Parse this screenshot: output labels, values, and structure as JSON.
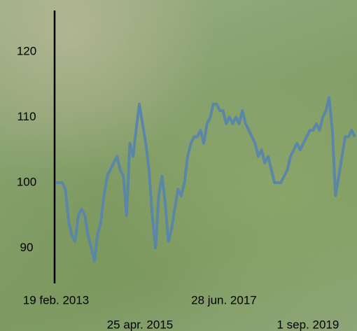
{
  "chart_data": {
    "type": "line",
    "x": [
      "2013-02-19",
      "2013-03-19",
      "2013-04-19",
      "2013-05-19",
      "2013-06-19",
      "2013-07-19",
      "2013-08-19",
      "2013-09-19",
      "2013-10-19",
      "2013-11-19",
      "2013-12-19",
      "2014-01-19",
      "2014-02-19",
      "2014-03-19",
      "2014-04-19",
      "2014-05-19",
      "2014-06-19",
      "2014-07-19",
      "2014-08-19",
      "2014-09-19",
      "2014-10-19",
      "2014-11-19",
      "2014-12-19",
      "2015-01-19",
      "2015-02-19",
      "2015-03-19",
      "2015-04-19",
      "2015-05-19",
      "2015-06-19",
      "2015-07-19",
      "2015-08-19",
      "2015-09-19",
      "2015-10-19",
      "2015-11-19",
      "2015-12-19",
      "2016-01-19",
      "2016-02-19",
      "2016-03-19",
      "2016-04-19",
      "2016-05-19",
      "2016-06-19",
      "2016-07-19",
      "2016-08-19",
      "2016-09-19",
      "2016-10-19",
      "2016-11-19",
      "2016-12-19",
      "2017-01-19",
      "2017-02-19",
      "2017-03-19",
      "2017-04-19",
      "2017-05-19",
      "2017-06-19",
      "2017-07-19",
      "2017-08-19",
      "2017-09-19",
      "2017-10-19",
      "2017-11-19",
      "2017-12-19",
      "2018-01-19",
      "2018-02-19",
      "2018-03-19",
      "2018-04-19",
      "2018-05-19",
      "2018-06-19",
      "2018-07-19",
      "2018-08-19",
      "2018-09-19",
      "2018-10-19",
      "2018-11-19",
      "2018-12-19",
      "2019-01-19",
      "2019-02-19",
      "2019-03-19",
      "2019-04-19",
      "2019-05-19",
      "2019-06-19",
      "2019-07-19",
      "2019-08-19",
      "2019-09-19",
      "2019-10-19",
      "2019-11-19",
      "2019-12-19",
      "2020-01-19",
      "2020-02-19",
      "2020-03-19",
      "2020-04-19",
      "2020-05-19",
      "2020-06-19",
      "2020-07-19",
      "2020-08-19",
      "2020-09-19",
      "2020-10-19",
      "2020-11-19"
    ],
    "series": [
      {
        "color": "#5b87a6",
        "values": [
          100,
          100,
          100,
          99,
          94,
          92,
          91,
          95,
          96,
          95,
          92,
          90,
          88,
          92,
          94,
          98,
          101,
          102,
          103,
          104,
          102,
          101,
          95,
          106,
          104,
          108,
          112,
          109,
          106,
          102,
          95,
          90,
          98,
          101,
          97,
          91,
          93,
          96,
          99,
          98,
          100,
          104,
          106,
          107,
          107,
          108,
          106,
          109,
          110,
          112,
          112,
          111,
          111,
          109,
          110,
          109,
          110,
          109,
          111,
          109,
          108,
          107,
          106,
          104,
          105,
          103,
          104,
          102,
          100,
          100,
          100,
          101,
          102,
          104,
          105,
          106,
          105,
          106,
          107,
          108,
          108,
          109,
          108,
          110,
          111,
          113,
          108,
          98,
          101,
          104,
          107,
          107,
          108,
          107
        ]
      }
    ],
    "xlim": [
      "2013-02-19",
      "2020-11-25"
    ],
    "xticks": [
      {
        "value": "2013-02-19",
        "label": "19 feb. 2013"
      },
      {
        "value": "2015-04-25",
        "label": "25 apr. 2015"
      },
      {
        "value": "2017-06-28",
        "label": "28 jun. 2017"
      },
      {
        "value": "2019-09-01",
        "label": "1 sep. 2019"
      }
    ],
    "ylim": [
      84.6,
      126.3
    ],
    "yticks": [
      90,
      100,
      110,
      120
    ]
  }
}
